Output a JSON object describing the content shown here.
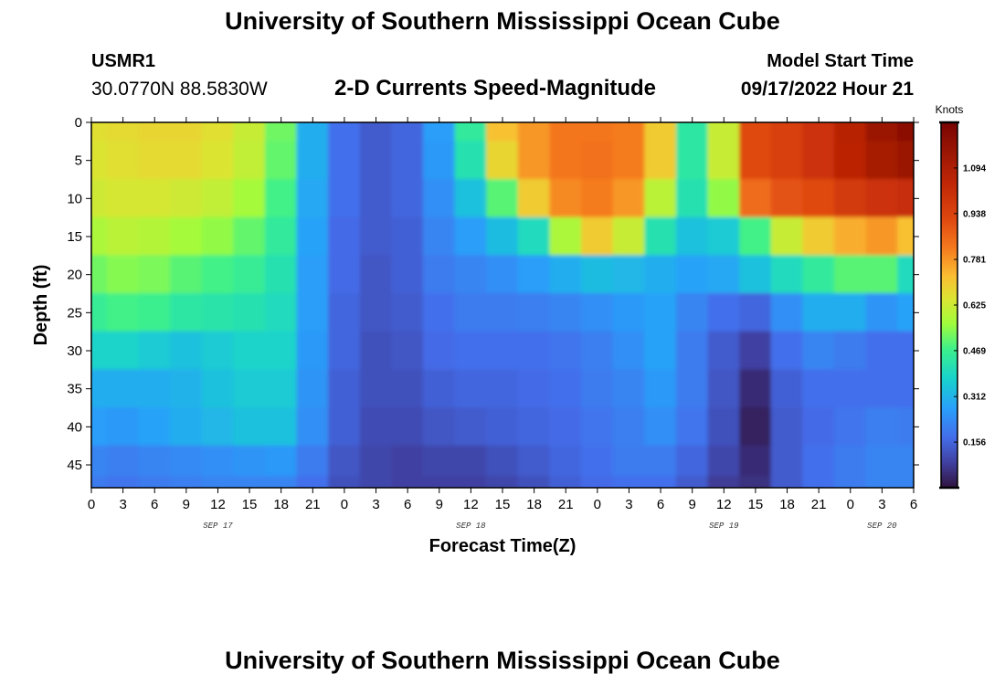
{
  "header": {
    "title": "University of Southern Mississippi Ocean Cube",
    "station_id": "USMR1",
    "station_coords": "30.0770N  88.5830W",
    "plot_title": "2-D Currents Speed-Magnitude",
    "start_label": "Model Start Time",
    "start_value": "09/17/2022 Hour 21"
  },
  "footer": {
    "title": "University of Southern Mississippi Ocean Cube"
  },
  "chart_data": {
    "type": "heatmap",
    "title": "2-D Currents Speed-Magnitude",
    "xlabel": "Forecast Time(Z)",
    "ylabel": "Depth (ft)",
    "x_hours_since_sep17_00z": [
      0,
      3,
      6,
      9,
      12,
      15,
      18,
      21,
      24,
      27,
      30,
      33,
      36,
      39,
      42,
      45,
      48,
      51,
      54,
      57,
      60,
      63,
      66,
      69,
      72,
      75,
      78
    ],
    "x_tick_labels": [
      "0",
      "3",
      "6",
      "9",
      "12",
      "15",
      "18",
      "21",
      "0",
      "3",
      "6",
      "9",
      "12",
      "15",
      "18",
      "21",
      "0",
      "3",
      "6",
      "9",
      "12",
      "15",
      "18",
      "21",
      "0",
      "3",
      "6"
    ],
    "day_labels": [
      {
        "label": "SEP 17",
        "hour": 12
      },
      {
        "label": "SEP 18",
        "hour": 36
      },
      {
        "label": "SEP 19",
        "hour": 60
      },
      {
        "label": "SEP 20",
        "hour": 75
      }
    ],
    "xlim": [
      0,
      78
    ],
    "depth_ft": [
      0,
      5,
      10,
      15,
      20,
      25,
      30,
      35,
      40,
      45,
      48
    ],
    "y_ticks": [
      0,
      5,
      10,
      15,
      20,
      25,
      30,
      35,
      40,
      45
    ],
    "ylim": [
      0,
      48
    ],
    "speed_knots": [
      [
        0.66,
        0.67,
        0.68,
        0.68,
        0.66,
        0.62,
        0.52,
        0.3,
        0.18,
        0.14,
        0.16,
        0.27,
        0.45,
        0.72,
        0.78,
        0.83,
        0.83,
        0.82,
        0.7,
        0.44,
        0.62,
        0.92,
        0.95,
        1.0,
        1.07,
        1.15,
        1.2
      ],
      [
        0.65,
        0.66,
        0.67,
        0.67,
        0.65,
        0.61,
        0.51,
        0.3,
        0.18,
        0.14,
        0.16,
        0.26,
        0.42,
        0.68,
        0.78,
        0.83,
        0.84,
        0.82,
        0.7,
        0.44,
        0.62,
        0.92,
        0.95,
        1.0,
        1.06,
        1.12,
        1.15
      ],
      [
        0.63,
        0.64,
        0.64,
        0.63,
        0.61,
        0.57,
        0.48,
        0.29,
        0.18,
        0.14,
        0.16,
        0.24,
        0.34,
        0.5,
        0.7,
        0.8,
        0.82,
        0.78,
        0.6,
        0.42,
        0.55,
        0.85,
        0.9,
        0.92,
        0.97,
        1.0,
        1.02
      ],
      [
        0.58,
        0.6,
        0.59,
        0.57,
        0.55,
        0.51,
        0.45,
        0.28,
        0.17,
        0.14,
        0.15,
        0.22,
        0.27,
        0.33,
        0.4,
        0.58,
        0.7,
        0.62,
        0.42,
        0.34,
        0.36,
        0.48,
        0.62,
        0.7,
        0.75,
        0.78,
        0.72
      ],
      [
        0.52,
        0.54,
        0.53,
        0.5,
        0.48,
        0.46,
        0.42,
        0.27,
        0.17,
        0.13,
        0.15,
        0.2,
        0.22,
        0.24,
        0.27,
        0.3,
        0.33,
        0.32,
        0.3,
        0.28,
        0.29,
        0.34,
        0.4,
        0.45,
        0.5,
        0.5,
        0.4
      ],
      [
        0.46,
        0.48,
        0.47,
        0.44,
        0.43,
        0.42,
        0.4,
        0.27,
        0.16,
        0.13,
        0.14,
        0.18,
        0.2,
        0.2,
        0.21,
        0.22,
        0.24,
        0.26,
        0.28,
        0.22,
        0.18,
        0.16,
        0.24,
        0.3,
        0.3,
        0.25,
        0.28
      ],
      [
        0.38,
        0.38,
        0.36,
        0.34,
        0.36,
        0.38,
        0.38,
        0.26,
        0.16,
        0.12,
        0.13,
        0.17,
        0.18,
        0.18,
        0.18,
        0.19,
        0.21,
        0.24,
        0.28,
        0.2,
        0.14,
        0.09,
        0.18,
        0.22,
        0.2,
        0.18,
        0.18
      ],
      [
        0.3,
        0.3,
        0.3,
        0.31,
        0.34,
        0.36,
        0.36,
        0.25,
        0.15,
        0.12,
        0.12,
        0.15,
        0.16,
        0.16,
        0.17,
        0.18,
        0.2,
        0.22,
        0.26,
        0.2,
        0.13,
        0.05,
        0.15,
        0.18,
        0.18,
        0.18,
        0.18
      ],
      [
        0.27,
        0.26,
        0.28,
        0.3,
        0.32,
        0.34,
        0.34,
        0.24,
        0.15,
        0.11,
        0.11,
        0.13,
        0.14,
        0.15,
        0.16,
        0.17,
        0.19,
        0.21,
        0.24,
        0.19,
        0.12,
        0.03,
        0.14,
        0.17,
        0.19,
        0.21,
        0.2
      ],
      [
        0.22,
        0.21,
        0.22,
        0.23,
        0.24,
        0.25,
        0.26,
        0.2,
        0.13,
        0.1,
        0.09,
        0.1,
        0.1,
        0.12,
        0.14,
        0.16,
        0.18,
        0.2,
        0.2,
        0.16,
        0.1,
        0.05,
        0.14,
        0.18,
        0.2,
        0.22,
        0.22
      ],
      [
        0.2,
        0.19,
        0.2,
        0.21,
        0.22,
        0.22,
        0.22,
        0.18,
        0.12,
        0.1,
        0.09,
        0.09,
        0.09,
        0.1,
        0.12,
        0.15,
        0.17,
        0.18,
        0.18,
        0.14,
        0.08,
        0.06,
        0.14,
        0.18,
        0.2,
        0.22,
        0.22
      ]
    ],
    "colorbar": {
      "unit": "Knots",
      "range": [
        0.0,
        1.25
      ],
      "tick_values": [
        0.156,
        0.312,
        0.469,
        0.625,
        0.781,
        0.938,
        1.094
      ],
      "tick_labels": [
        "0.156",
        "0.312",
        "0.469",
        "0.625",
        "0.781",
        "0.938",
        "1.094"
      ],
      "colormap": "turbo"
    },
    "grid": false
  }
}
